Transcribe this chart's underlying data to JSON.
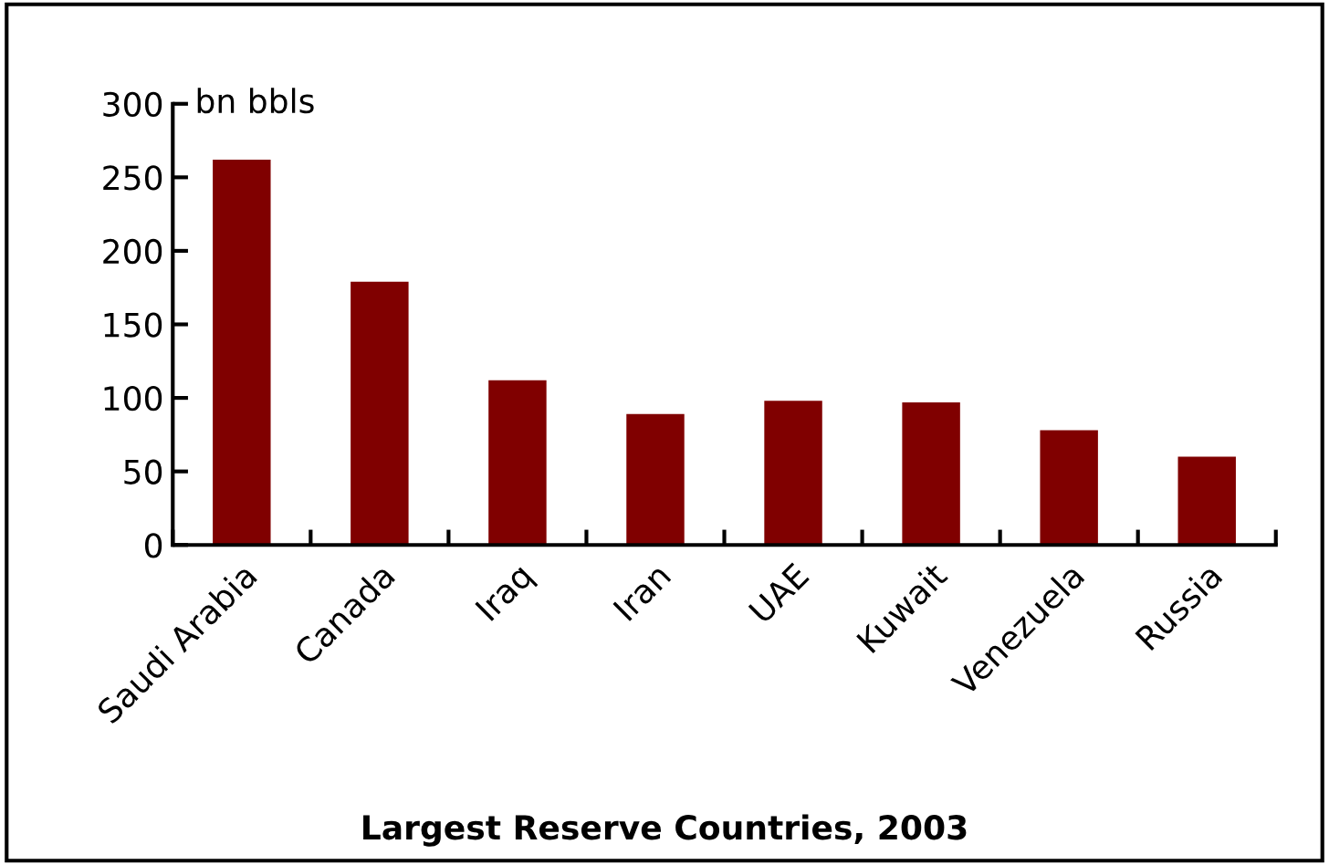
{
  "chart_data": {
    "type": "bar",
    "title": "Largest Reserve Countries, 2003",
    "ylabel": "bn bbls",
    "categories": [
      "Saudi Arabia",
      "Canada",
      "Iraq",
      "Iran",
      "UAE",
      "Kuwait",
      "Venezuela",
      "Russia"
    ],
    "values": [
      262,
      179,
      112,
      89,
      98,
      97,
      78,
      60
    ],
    "color": "#800000",
    "ylim": [
      0,
      300
    ],
    "yticks": [
      0,
      50,
      100,
      150,
      200,
      250,
      300
    ],
    "grid": false,
    "legend": false
  }
}
